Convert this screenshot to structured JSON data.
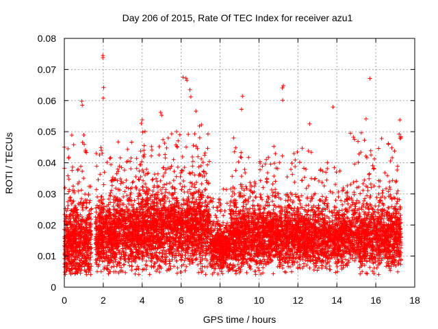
{
  "chart_data": {
    "type": "scatter",
    "title": "Day 206 of 2015, Rate Of TEC Index for receiver azu1",
    "xlabel": "GPS time / hours",
    "ylabel": "ROTI / TECUs",
    "xlim": [
      0,
      18
    ],
    "ylim": [
      0,
      0.08
    ],
    "xticks": [
      "0",
      "2",
      "4",
      "6",
      "8",
      "10",
      "12",
      "14",
      "16",
      "18"
    ],
    "yticks": [
      "0",
      "0.01",
      "0.02",
      "0.03",
      "0.04",
      "0.05",
      "0.06",
      "0.07",
      "0.08"
    ],
    "grid": true,
    "marker": "+",
    "color": "#ff0000",
    "data_x_range": [
      0,
      17.3
    ],
    "notable_points": [
      {
        "x": 1.98,
        "y": 0.0745
      },
      {
        "x": 1.98,
        "y": 0.0738
      },
      {
        "x": 2.02,
        "y": 0.0642
      },
      {
        "x": 2.0,
        "y": 0.0608
      },
      {
        "x": 6.1,
        "y": 0.0675
      },
      {
        "x": 6.25,
        "y": 0.0672
      },
      {
        "x": 6.3,
        "y": 0.0665
      },
      {
        "x": 6.45,
        "y": 0.0635
      },
      {
        "x": 6.5,
        "y": 0.0612
      },
      {
        "x": 11.25,
        "y": 0.0648
      },
      {
        "x": 11.2,
        "y": 0.0641
      },
      {
        "x": 11.22,
        "y": 0.0601
      },
      {
        "x": 15.7,
        "y": 0.0671
      },
      {
        "x": 9.15,
        "y": 0.0614
      },
      {
        "x": 9.1,
        "y": 0.0572
      },
      {
        "x": 0.9,
        "y": 0.0598
      },
      {
        "x": 0.92,
        "y": 0.0585
      },
      {
        "x": 13.8,
        "y": 0.0579
      },
      {
        "x": 4.95,
        "y": 0.0562
      },
      {
        "x": 5.0,
        "y": 0.0553
      },
      {
        "x": 15.5,
        "y": 0.0541
      },
      {
        "x": 4.0,
        "y": 0.0538
      },
      {
        "x": 12.6,
        "y": 0.0525
      },
      {
        "x": 17.2,
        "y": 0.0492
      }
    ],
    "segments": [
      {
        "x0": 0.0,
        "x1": 1.4,
        "base": 0.014,
        "spread": 0.01,
        "peak": 0.045,
        "n": 700
      },
      {
        "x0": 1.4,
        "x1": 1.6,
        "base": 0.0,
        "spread": 0.0,
        "peak": 0.0,
        "n": 0
      },
      {
        "x0": 1.6,
        "x1": 3.8,
        "base": 0.016,
        "spread": 0.009,
        "peak": 0.045,
        "n": 1100
      },
      {
        "x0": 3.8,
        "x1": 5.2,
        "base": 0.018,
        "spread": 0.01,
        "peak": 0.052,
        "n": 750
      },
      {
        "x0": 5.2,
        "x1": 7.5,
        "base": 0.018,
        "spread": 0.01,
        "peak": 0.05,
        "n": 1100
      },
      {
        "x0": 7.5,
        "x1": 8.5,
        "base": 0.012,
        "spread": 0.006,
        "peak": 0.028,
        "n": 450
      },
      {
        "x0": 8.5,
        "x1": 10.5,
        "base": 0.016,
        "spread": 0.009,
        "peak": 0.048,
        "n": 1000
      },
      {
        "x0": 10.5,
        "x1": 12.3,
        "base": 0.016,
        "spread": 0.008,
        "peak": 0.046,
        "n": 850
      },
      {
        "x0": 12.3,
        "x1": 14.3,
        "base": 0.015,
        "spread": 0.008,
        "peak": 0.045,
        "n": 900
      },
      {
        "x0": 14.3,
        "x1": 17.3,
        "base": 0.016,
        "spread": 0.009,
        "peak": 0.049,
        "n": 1300
      }
    ]
  }
}
